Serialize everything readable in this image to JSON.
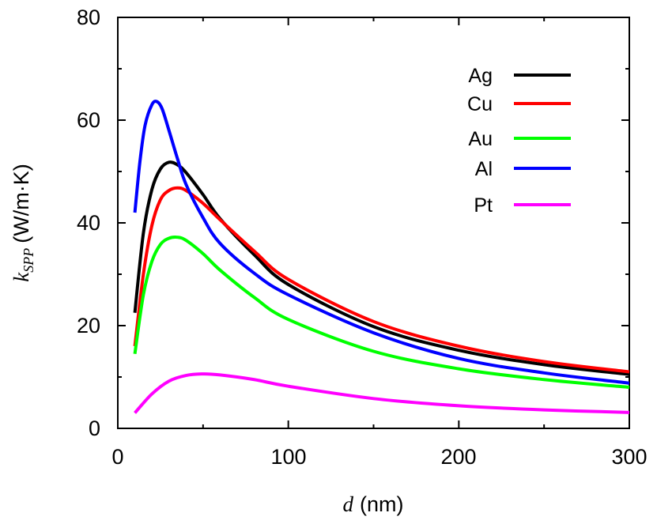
{
  "chart_data": {
    "type": "line",
    "title": "",
    "xlabel": {
      "symbol": "d",
      "unit": "(nm)"
    },
    "ylabel": {
      "symbol": "k",
      "subscript": "SPP",
      "unit": "(W/m·K)"
    },
    "xlim": [
      0,
      300
    ],
    "ylim": [
      0,
      80
    ],
    "xticks": [
      0,
      100,
      200,
      300
    ],
    "yticks": [
      0,
      20,
      40,
      60,
      80
    ],
    "grid": false,
    "legend_position": "top-right",
    "series": [
      {
        "name": "Ag",
        "color": "#000000",
        "x": [
          10,
          15,
          20,
          25,
          30,
          35,
          40,
          50,
          60,
          80,
          100,
          150,
          200,
          250,
          300
        ],
        "y": [
          22.5,
          38,
          46.5,
          50.5,
          51.8,
          51.3,
          49.8,
          45.5,
          40.8,
          33.8,
          28,
          19.8,
          15.2,
          12.4,
          10.5
        ]
      },
      {
        "name": "Cu",
        "color": "#ff0000",
        "x": [
          10,
          15,
          20,
          25,
          30,
          35,
          40,
          50,
          60,
          80,
          100,
          150,
          200,
          250,
          300
        ],
        "y": [
          16,
          30,
          39.5,
          44.5,
          46.3,
          46.8,
          46.3,
          43.8,
          40.6,
          34.5,
          29,
          20.8,
          16,
          13,
          11
        ]
      },
      {
        "name": "Au",
        "color": "#00ff00",
        "x": [
          10,
          15,
          20,
          25,
          30,
          35,
          40,
          50,
          60,
          80,
          100,
          150,
          200,
          250,
          300
        ],
        "y": [
          14.5,
          26,
          32.5,
          35.8,
          37,
          37.2,
          36.6,
          34,
          30.8,
          25.5,
          21.2,
          15,
          11.6,
          9.5,
          8
        ]
      },
      {
        "name": "Al",
        "color": "#0000ff",
        "x": [
          10,
          13,
          16,
          20,
          23,
          26,
          30,
          35,
          40,
          50,
          60,
          80,
          100,
          150,
          200,
          250,
          300
        ],
        "y": [
          42,
          52,
          59,
          63,
          63.6,
          62.2,
          58,
          52.5,
          47.5,
          41,
          36,
          30.2,
          26,
          18.6,
          13.6,
          10.8,
          8.8
        ]
      },
      {
        "name": "Pt",
        "color": "#ff00ff",
        "x": [
          10,
          20,
          30,
          40,
          50,
          60,
          80,
          100,
          150,
          200,
          250,
          300
        ],
        "y": [
          3,
          6.7,
          9.2,
          10.3,
          10.6,
          10.4,
          9.5,
          8.2,
          5.8,
          4.4,
          3.6,
          3.1
        ]
      }
    ]
  }
}
